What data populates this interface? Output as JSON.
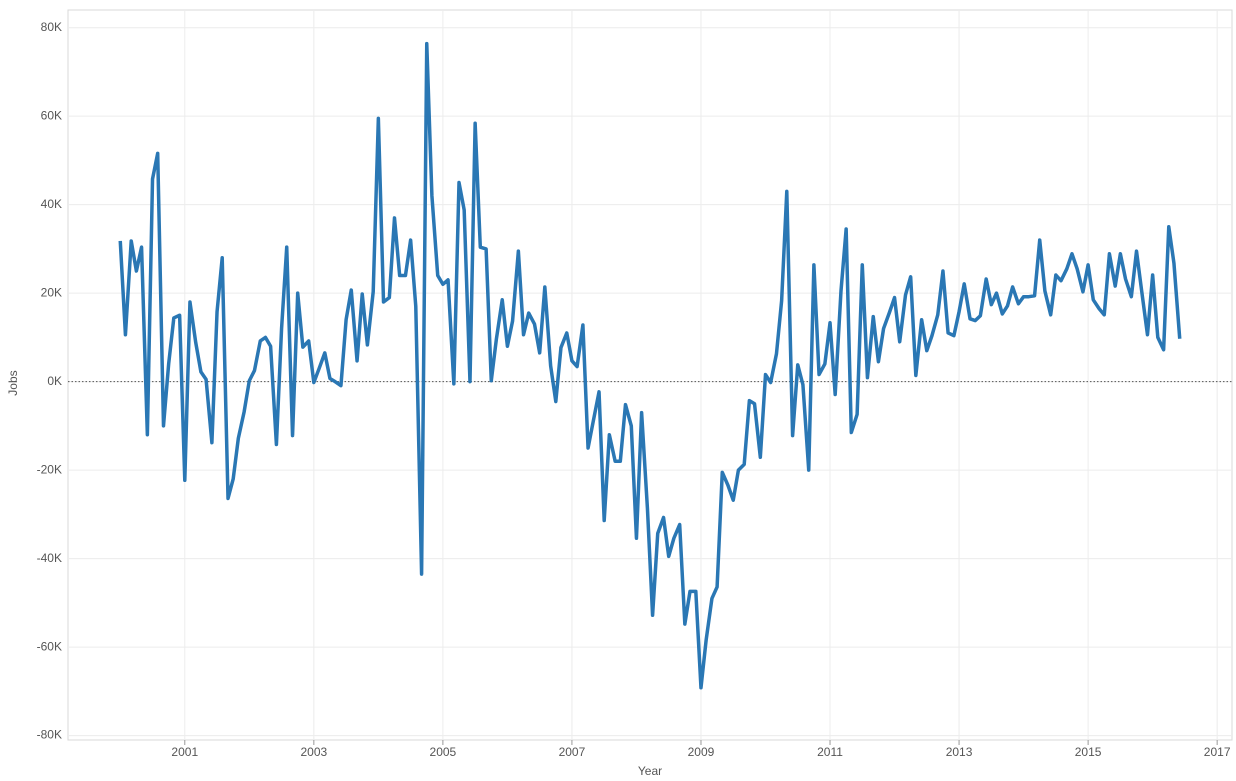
{
  "chart_data": {
    "type": "line",
    "x_label": "Year",
    "y_label": "Jobs",
    "color": "#2a77b4",
    "grid": true,
    "zero_line": true,
    "xlim": [
      1999.19,
      2017.23
    ],
    "xticks": [
      2001,
      2003,
      2005,
      2007,
      2009,
      2011,
      2013,
      2015,
      2017
    ],
    "ylim": [
      -81000,
      84000
    ],
    "yticks": [
      {
        "value": -80000,
        "label": "-80K"
      },
      {
        "value": -60000,
        "label": "-60K"
      },
      {
        "value": -40000,
        "label": "-40K"
      },
      {
        "value": -20000,
        "label": "-20K"
      },
      {
        "value": 0,
        "label": "0K"
      },
      {
        "value": 20000,
        "label": "20K"
      },
      {
        "value": 40000,
        "label": "40K"
      },
      {
        "value": 60000,
        "label": "60K"
      },
      {
        "value": 80000,
        "label": "80K"
      }
    ],
    "x": [
      2000,
      2000.08,
      2000.17,
      2000.25,
      2000.33,
      2000.42,
      2000.5,
      2000.58,
      2000.67,
      2000.75,
      2000.83,
      2000.92,
      2001,
      2001.08,
      2001.17,
      2001.25,
      2001.33,
      2001.42,
      2001.5,
      2001.58,
      2001.67,
      2001.75,
      2001.83,
      2001.92,
      2002,
      2002.08,
      2002.17,
      2002.25,
      2002.33,
      2002.42,
      2002.5,
      2002.58,
      2002.67,
      2002.75,
      2002.83,
      2002.92,
      2003,
      2003.08,
      2003.17,
      2003.25,
      2003.33,
      2003.42,
      2003.5,
      2003.58,
      2003.67,
      2003.75,
      2003.83,
      2003.92,
      2004,
      2004.08,
      2004.17,
      2004.25,
      2004.33,
      2004.42,
      2004.5,
      2004.58,
      2004.67,
      2004.75,
      2004.83,
      2004.92,
      2005,
      2005.08,
      2005.17,
      2005.25,
      2005.33,
      2005.42,
      2005.5,
      2005.58,
      2005.67,
      2005.75,
      2005.83,
      2005.92,
      2006,
      2006.08,
      2006.17,
      2006.25,
      2006.33,
      2006.42,
      2006.5,
      2006.58,
      2006.67,
      2006.75,
      2006.83,
      2006.92,
      2007,
      2007.08,
      2007.17,
      2007.25,
      2007.33,
      2007.42,
      2007.5,
      2007.58,
      2007.67,
      2007.75,
      2007.83,
      2007.92,
      2008,
      2008.08,
      2008.17,
      2008.25,
      2008.33,
      2008.42,
      2008.5,
      2008.58,
      2008.67,
      2008.75,
      2008.83,
      2008.92,
      2009,
      2009.08,
      2009.17,
      2009.25,
      2009.33,
      2009.42,
      2009.5,
      2009.58,
      2009.67,
      2009.75,
      2009.83,
      2009.92,
      2010,
      2010.08,
      2010.17,
      2010.25,
      2010.33,
      2010.42,
      2010.5,
      2010.58,
      2010.67,
      2010.75,
      2010.83,
      2010.92,
      2011,
      2011.08,
      2011.17,
      2011.25,
      2011.33,
      2011.42,
      2011.5,
      2011.58,
      2011.67,
      2011.75,
      2011.83,
      2011.92,
      2012,
      2012.08,
      2012.17,
      2012.25,
      2012.33,
      2012.42,
      2012.5,
      2012.58,
      2012.67,
      2012.75,
      2012.83,
      2012.92,
      2013,
      2013.08,
      2013.17,
      2013.25,
      2013.33,
      2013.42,
      2013.5,
      2013.58,
      2013.67,
      2013.75,
      2013.83,
      2013.92,
      2014,
      2014.08,
      2014.17,
      2014.25,
      2014.33,
      2014.42,
      2014.5,
      2014.58,
      2014.67,
      2014.75,
      2014.83,
      2014.92,
      2015,
      2015.08,
      2015.17,
      2015.25,
      2015.33,
      2015.42,
      2015.5,
      2015.58,
      2015.67,
      2015.75,
      2015.83,
      2015.92,
      2016,
      2016.08,
      2016.17,
      2016.25,
      2016.33,
      2016.42
    ],
    "values": [
      31800,
      10600,
      31800,
      25000,
      30400,
      -12000,
      45800,
      51600,
      -10000,
      4000,
      14400,
      15000,
      -22300,
      18000,
      8800,
      2200,
      500,
      -13800,
      15800,
      28000,
      -26400,
      -22000,
      -12800,
      -6800,
      200,
      2500,
      9200,
      10000,
      8000,
      -14200,
      12000,
      30400,
      -12200,
      20000,
      7800,
      9200,
      -200,
      2900,
      6500,
      700,
      0,
      -900,
      14000,
      20700,
      4700,
      19800,
      8300,
      20300,
      59500,
      18000,
      19000,
      37000,
      24000,
      24000,
      32000,
      17000,
      -43500,
      76400,
      42000,
      24000,
      22000,
      23000,
      -500,
      45000,
      38800,
      0,
      58400,
      30400,
      30000,
      200,
      9700,
      18500,
      8000,
      13700,
      29500,
      10600,
      15500,
      13000,
      6500,
      21400,
      3600,
      -4500,
      7700,
      11000,
      4700,
      3400,
      12800,
      -15000,
      -9000,
      -2300,
      -31400,
      -12000,
      -18000,
      -18000,
      -5200,
      -10000,
      -35400,
      -7000,
      -28600,
      -52800,
      -34300,
      -30700,
      -39500,
      -35400,
      -32300,
      -54800,
      -47400,
      -47400,
      -69200,
      -58400,
      -49000,
      -46400,
      -20500,
      -23500,
      -26800,
      -20000,
      -18700,
      -4300,
      -5000,
      -17100,
      1600,
      -200,
      6300,
      18300,
      43000,
      -12200,
      3800,
      -700,
      -20000,
      26400,
      1600,
      4000,
      13300,
      -2900,
      20500,
      34500,
      -11500,
      -7400,
      26400,
      900,
      14700,
      4500,
      12000,
      15600,
      19000,
      9000,
      19600,
      23700,
      1400,
      14000,
      7000,
      10400,
      15100,
      25000,
      11000,
      10400,
      15800,
      22100,
      14200,
      13800,
      14900,
      23200,
      17400,
      20000,
      15300,
      17100,
      21400,
      17600,
      19200,
      19200,
      19400,
      32000,
      20500,
      15100,
      24100,
      22800,
      25500,
      28900,
      25500,
      20300,
      26400,
      18500,
      16500,
      15100,
      28900,
      21600,
      28900,
      23200,
      19200,
      29500,
      20500,
      10600,
      24100,
      10000,
      7200,
      35000,
      26800,
      9700
    ]
  }
}
